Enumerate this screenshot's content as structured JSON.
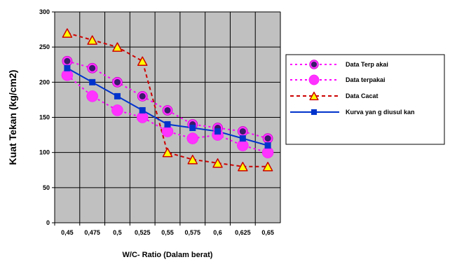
{
  "chart_data": {
    "type": "line",
    "title": "",
    "xlabel": "W/C- Ratio (Dalam berat)",
    "ylabel": "Kuat Tekan (kg/cm2)",
    "categories": [
      "0,45",
      "0,475",
      "0,5",
      "0,525",
      "0,55",
      "0,575",
      "0,6",
      "0,625",
      "0,65"
    ],
    "ylim": [
      0,
      300
    ],
    "yticks": [
      "0",
      "50",
      "100",
      "150",
      "200",
      "250",
      "300"
    ],
    "grid": true,
    "legend_position": "right",
    "series": [
      {
        "name": "Data Terp akai",
        "style": "dotted",
        "marker": "circle-dark-center",
        "color": "#ff00ff",
        "values": [
          230,
          220,
          200,
          180,
          160,
          140,
          135,
          130,
          120
        ]
      },
      {
        "name": "Data terpakai",
        "style": "dotted",
        "marker": "circle",
        "color": "#ff00ff",
        "values": [
          210,
          180,
          160,
          150,
          130,
          120,
          125,
          110,
          100
        ]
      },
      {
        "name": "Data Cacat",
        "style": "dashed",
        "marker": "triangle",
        "color": "#cc0000",
        "values": [
          270,
          260,
          250,
          230,
          100,
          90,
          85,
          80,
          80
        ]
      },
      {
        "name": "Kurva yan g diusul kan",
        "style": "solid",
        "marker": "square",
        "color": "#0033cc",
        "values": [
          220,
          200,
          180,
          160,
          140,
          135,
          130,
          120,
          110
        ]
      }
    ]
  }
}
